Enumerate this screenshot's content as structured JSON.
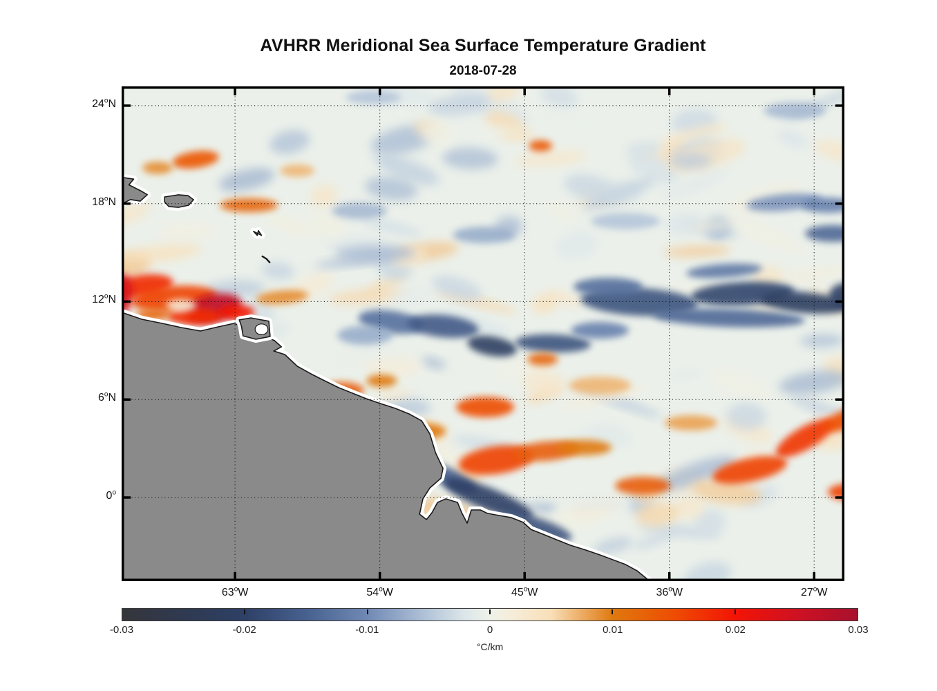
{
  "figure": {
    "title": "AVHRR Meridional Sea Surface Temperature Gradient",
    "subtitle": "2018-07-28"
  },
  "chart_data": {
    "type": "heatmap",
    "title": "AVHRR Meridional Sea Surface Temperature Gradient",
    "subtitle": "2018-07-28",
    "variable": "meridional sea surface temperature gradient",
    "value_units": "°C/km",
    "axes": {
      "lon_range_degE": [
        -70.05,
        -25.12
      ],
      "lat_range_degN": [
        -5.12,
        25.18
      ],
      "x_ticks": [
        {
          "value": 63,
          "label": "63",
          "unit": "W"
        },
        {
          "value": 54,
          "label": "54",
          "unit": "W"
        },
        {
          "value": 45,
          "label": "45",
          "unit": "W"
        },
        {
          "value": 36,
          "label": "36",
          "unit": "W"
        },
        {
          "value": 27,
          "label": "27",
          "unit": "W"
        }
      ],
      "y_ticks": [
        {
          "value": 24,
          "label": "24",
          "unit": "N"
        },
        {
          "value": 18,
          "label": "18",
          "unit": "N"
        },
        {
          "value": 12,
          "label": "12",
          "unit": "N"
        },
        {
          "value": 6,
          "label": "6",
          "unit": "N"
        },
        {
          "value": 0,
          "label": "0",
          "unit": ""
        }
      ],
      "grid": "dotted"
    },
    "colorbar": {
      "min": -0.03,
      "max": 0.03,
      "tick_values": [
        -0.03,
        -0.02,
        -0.01,
        0,
        0.01,
        0.02,
        0.03
      ],
      "tick_labels": [
        "-0.03",
        "-0.02",
        "-0.01",
        "0",
        "0.01",
        "0.02",
        "0.03"
      ],
      "unit_label": "°C/km",
      "stops": [
        [
          -0.03,
          "#35363b"
        ],
        [
          -0.025,
          "#2f3950"
        ],
        [
          -0.02,
          "#2e4066"
        ],
        [
          -0.015,
          "#47618f"
        ],
        [
          -0.01,
          "#7089b4"
        ],
        [
          -0.005,
          "#b5c6da"
        ],
        [
          -0.002,
          "#dde7ea"
        ],
        [
          0.0,
          "#eef2e9"
        ],
        [
          0.002,
          "#f6ecd8"
        ],
        [
          0.005,
          "#f8dfb8"
        ],
        [
          0.01,
          "#e0790f"
        ],
        [
          0.015,
          "#ee4d02"
        ],
        [
          0.02,
          "#f31405"
        ],
        [
          0.025,
          "#cf1122"
        ],
        [
          0.03,
          "#a8112e"
        ]
      ]
    },
    "ocean_base_color": "#ebf0ea",
    "land_color": "#8a8a8a",
    "coast_halo_color": "#ffffff",
    "land_outline_color": "#1a1a1a",
    "land_polygons": {
      "south_america": [
        [
          -71.5,
          11.4
        ],
        [
          -70.05,
          11.34
        ],
        [
          -68.8,
          10.92
        ],
        [
          -67.5,
          10.66
        ],
        [
          -66.35,
          10.41
        ],
        [
          -65.15,
          10.2
        ],
        [
          -64.07,
          10.45
        ],
        [
          -63.09,
          10.66
        ],
        [
          -62.14,
          10.41
        ],
        [
          -61.15,
          10.45
        ],
        [
          -61.24,
          9.9
        ],
        [
          -60.55,
          9.61
        ],
        [
          -60.12,
          9.23
        ],
        [
          -60.59,
          8.97
        ],
        [
          -59.91,
          8.76
        ],
        [
          -59.13,
          8.04
        ],
        [
          -58.27,
          7.57
        ],
        [
          -57.42,
          7.15
        ],
        [
          -56.56,
          6.73
        ],
        [
          -55.7,
          6.39
        ],
        [
          -54.84,
          6.05
        ],
        [
          -53.98,
          5.76
        ],
        [
          -53.03,
          5.46
        ],
        [
          -52.18,
          5.12
        ],
        [
          -51.4,
          4.7
        ],
        [
          -50.89,
          3.89
        ],
        [
          -50.54,
          2.75
        ],
        [
          -50.07,
          1.78
        ],
        [
          -50.2,
          1.18
        ],
        [
          -50.89,
          0.59
        ],
        [
          -51.32,
          -0.08
        ],
        [
          -51.53,
          -1.02
        ],
        [
          -51.1,
          -1.35
        ],
        [
          -50.76,
          -0.93
        ],
        [
          -50.41,
          -0.3
        ],
        [
          -49.9,
          -0.08
        ],
        [
          -49.17,
          -0.3
        ],
        [
          -48.91,
          -0.93
        ],
        [
          -48.57,
          -1.57
        ],
        [
          -48.31,
          -0.76
        ],
        [
          -47.75,
          -0.76
        ],
        [
          -47.32,
          -0.97
        ],
        [
          -46.59,
          -1.1
        ],
        [
          -45.82,
          -1.23
        ],
        [
          -45.09,
          -1.52
        ],
        [
          -44.61,
          -1.95
        ],
        [
          -43.88,
          -2.24
        ],
        [
          -43.02,
          -2.58
        ],
        [
          -42.16,
          -2.92
        ],
        [
          -41.18,
          -3.22
        ],
        [
          -40.32,
          -3.51
        ],
        [
          -38.73,
          -4.1
        ],
        [
          -38.0,
          -4.49
        ],
        [
          -37.22,
          -5.12
        ],
        [
          -36.8,
          -6.5
        ],
        [
          -71.5,
          -6.5
        ]
      ],
      "trinidad": [
        [
          -62.74,
          10.88
        ],
        [
          -62.0,
          11.0
        ],
        [
          -60.9,
          10.8
        ],
        [
          -60.82,
          9.86
        ],
        [
          -61.7,
          9.69
        ],
        [
          -62.5,
          9.9
        ],
        [
          -62.6,
          10.5
        ]
      ],
      "hispaniola_east": [
        [
          -71.3,
          19.8
        ],
        [
          -69.3,
          19.5
        ],
        [
          -69.6,
          19.15
        ],
        [
          -68.8,
          18.75
        ],
        [
          -68.45,
          18.55
        ],
        [
          -68.9,
          18.15
        ],
        [
          -69.5,
          18.25
        ],
        [
          -70.0,
          18.0
        ],
        [
          -71.3,
          17.9
        ]
      ],
      "puerto_rico": [
        [
          -67.38,
          18.41
        ],
        [
          -66.52,
          18.54
        ],
        [
          -65.92,
          18.49
        ],
        [
          -65.58,
          18.24
        ],
        [
          -65.88,
          17.9
        ],
        [
          -66.52,
          17.77
        ],
        [
          -67.12,
          17.82
        ],
        [
          -67.38,
          18.11
        ]
      ],
      "islet_bowtie": [
        [
          -61.85,
          16.3
        ],
        [
          -61.62,
          16.05
        ],
        [
          -61.55,
          16.35
        ],
        [
          -61.35,
          16.05
        ]
      ]
    },
    "islet_dash_line": [
      [
        -61.3,
        14.77
      ],
      [
        -61.05,
        14.62
      ],
      [
        -60.85,
        14.4
      ]
    ],
    "trinidad_notch": {
      "lon": -61.35,
      "lat": 10.3,
      "rx": 0.4,
      "ry": 0.33
    },
    "features": [
      {
        "lon": -68.76,
        "lat": 12.95,
        "rx": 1.93,
        "ry": 0.68,
        "rot": -8,
        "value": 0.018
      },
      {
        "lon": -69.96,
        "lat": 12.48,
        "rx": 0.6,
        "ry": 1.18,
        "rot": 0,
        "value": 0.024
      },
      {
        "lon": -66.78,
        "lat": 12.19,
        "rx": 2.66,
        "ry": 0.76,
        "rot": -5,
        "value": 0.016
      },
      {
        "lon": -64.37,
        "lat": 11.6,
        "rx": 1.8,
        "ry": 0.85,
        "rot": -12,
        "value": 0.027
      },
      {
        "lon": -65.49,
        "lat": 11.09,
        "rx": 1.72,
        "ry": 0.51,
        "rot": 0,
        "value": 0.018
      },
      {
        "lon": -62.91,
        "lat": 11.34,
        "rx": 1.12,
        "ry": 0.47,
        "rot": 0,
        "value": 0.02
      },
      {
        "lon": -66.35,
        "lat": 11.76,
        "rx": 0.95,
        "ry": 0.38,
        "rot": 0,
        "value": 0.002
      },
      {
        "lon": -60.07,
        "lat": 12.27,
        "rx": 1.63,
        "ry": 0.42,
        "rot": -5,
        "value": 0.009
      },
      {
        "lon": -68.07,
        "lat": 11.21,
        "rx": 1.07,
        "ry": 0.34,
        "rot": 0,
        "value": 0.012
      },
      {
        "lon": -65.45,
        "lat": 20.69,
        "rx": 1.46,
        "ry": 0.51,
        "rot": -8,
        "value": 0.014
      },
      {
        "lon": -67.81,
        "lat": 20.19,
        "rx": 0.95,
        "ry": 0.38,
        "rot": 0,
        "value": 0.009
      },
      {
        "lon": -62.14,
        "lat": 17.9,
        "rx": 1.8,
        "ry": 0.42,
        "rot": 0,
        "value": 0.012
      },
      {
        "lon": -44.01,
        "lat": 21.54,
        "rx": 0.73,
        "ry": 0.34,
        "rot": 0,
        "value": 0.014
      },
      {
        "lon": -59.13,
        "lat": 20.02,
        "rx": 1.07,
        "ry": 0.38,
        "rot": 0,
        "value": 0.007
      },
      {
        "lon": -53.29,
        "lat": 10.75,
        "rx": 2.06,
        "ry": 0.68,
        "rot": 8,
        "value": -0.013
      },
      {
        "lon": -50.07,
        "lat": 10.49,
        "rx": 2.23,
        "ry": 0.68,
        "rot": 6,
        "value": -0.016
      },
      {
        "lon": -47.02,
        "lat": 9.27,
        "rx": 1.55,
        "ry": 0.59,
        "rot": 10,
        "value": -0.021
      },
      {
        "lon": -43.24,
        "lat": 9.44,
        "rx": 2.36,
        "ry": 0.55,
        "rot": 2,
        "value": -0.017
      },
      {
        "lon": -40.32,
        "lat": 10.24,
        "rx": 1.8,
        "ry": 0.51,
        "rot": 0,
        "value": -0.011
      },
      {
        "lon": -54.92,
        "lat": 9.94,
        "rx": 1.72,
        "ry": 0.59,
        "rot": 0,
        "value": -0.007
      },
      {
        "lon": -37.87,
        "lat": 11.98,
        "rx": 3.65,
        "ry": 0.85,
        "rot": 3,
        "value": -0.017
      },
      {
        "lon": -31.43,
        "lat": 12.48,
        "rx": 3.22,
        "ry": 0.72,
        "rot": -3,
        "value": -0.019
      },
      {
        "lon": -27.56,
        "lat": 11.93,
        "rx": 2.79,
        "ry": 0.63,
        "rot": 5,
        "value": -0.021
      },
      {
        "lon": -32.29,
        "lat": 11.0,
        "rx": 4.72,
        "ry": 0.55,
        "rot": 2,
        "value": -0.014
      },
      {
        "lon": -32.59,
        "lat": 13.88,
        "rx": 2.36,
        "ry": 0.42,
        "rot": -4,
        "value": -0.012
      },
      {
        "lon": -25.12,
        "lat": 12.36,
        "rx": 0.95,
        "ry": 0.76,
        "rot": 0,
        "value": -0.02
      },
      {
        "lon": -39.8,
        "lat": 12.91,
        "rx": 2.15,
        "ry": 0.55,
        "rot": 0,
        "value": -0.013
      },
      {
        "lon": -28.85,
        "lat": 18.07,
        "rx": 2.36,
        "ry": 0.51,
        "rot": -5,
        "value": -0.009
      },
      {
        "lon": -26.15,
        "lat": 17.9,
        "rx": 1.63,
        "ry": 0.47,
        "rot": 0,
        "value": -0.011
      },
      {
        "lon": -25.85,
        "lat": 16.17,
        "rx": 1.72,
        "ry": 0.51,
        "rot": 0,
        "value": -0.014
      },
      {
        "lon": -47.53,
        "lat": 16.08,
        "rx": 1.93,
        "ry": 0.51,
        "rot": 0,
        "value": -0.007
      },
      {
        "lon": -49.6,
        "lat": 1.18,
        "rx": 1.8,
        "ry": 0.55,
        "rot": 28,
        "value": -0.015
      },
      {
        "lon": -47.28,
        "lat": -0.08,
        "rx": 3.01,
        "ry": 0.68,
        "rot": 22,
        "value": -0.02
      },
      {
        "lon": -44.31,
        "lat": -1.78,
        "rx": 2.36,
        "ry": 0.55,
        "rot": 18,
        "value": -0.017
      },
      {
        "lon": -56.35,
        "lat": 6.56,
        "rx": 1.37,
        "ry": 0.51,
        "rot": 0,
        "value": 0.013
      },
      {
        "lon": -53.89,
        "lat": 7.15,
        "rx": 0.95,
        "ry": 0.38,
        "rot": 0,
        "value": 0.01
      },
      {
        "lon": -51.4,
        "lat": 4.06,
        "rx": 1.5,
        "ry": 0.51,
        "rot": 0,
        "value": 0.01
      },
      {
        "lon": -47.45,
        "lat": 5.54,
        "rx": 1.8,
        "ry": 0.63,
        "rot": 0,
        "value": 0.015
      },
      {
        "lon": -46.76,
        "lat": 2.29,
        "rx": 2.36,
        "ry": 0.85,
        "rot": -8,
        "value": 0.016
      },
      {
        "lon": -43.66,
        "lat": 2.84,
        "rx": 2.06,
        "ry": 0.59,
        "rot": -5,
        "value": 0.013
      },
      {
        "lon": -41.31,
        "lat": 3.05,
        "rx": 1.72,
        "ry": 0.47,
        "rot": 0,
        "value": 0.01
      },
      {
        "lon": -37.66,
        "lat": 0.72,
        "rx": 1.72,
        "ry": 0.55,
        "rot": 0,
        "value": 0.013
      },
      {
        "lon": -31.0,
        "lat": 1.69,
        "rx": 2.36,
        "ry": 0.72,
        "rot": -12,
        "value": 0.016
      },
      {
        "lon": -27.56,
        "lat": 3.64,
        "rx": 2.06,
        "ry": 0.68,
        "rot": -30,
        "value": 0.017
      },
      {
        "lon": -24.99,
        "lat": 4.78,
        "rx": 1.5,
        "ry": 0.59,
        "rot": -20,
        "value": 0.015
      },
      {
        "lon": -24.86,
        "lat": 0.34,
        "rx": 1.29,
        "ry": 0.51,
        "rot": 0,
        "value": 0.016
      },
      {
        "lon": -34.65,
        "lat": 4.57,
        "rx": 1.63,
        "ry": 0.47,
        "rot": 0,
        "value": 0.008
      },
      {
        "lon": -43.88,
        "lat": 8.46,
        "rx": 0.95,
        "ry": 0.38,
        "rot": 0,
        "value": 0.012
      },
      {
        "lon": -40.32,
        "lat": 6.86,
        "rx": 1.93,
        "ry": 0.55,
        "rot": 0,
        "value": 0.007
      },
      {
        "lon": -55.26,
        "lat": 17.56,
        "rx": 1.72,
        "ry": 0.51,
        "rot": 0,
        "value": -0.006
      },
      {
        "lon": -38.73,
        "lat": 16.93,
        "rx": 2.15,
        "ry": 0.51,
        "rot": 0,
        "value": -0.005
      },
      {
        "lon": -28.2,
        "lat": 23.7,
        "rx": 1.93,
        "ry": 0.51,
        "rot": 0,
        "value": -0.006
      },
      {
        "lon": -54.4,
        "lat": 24.5,
        "rx": 1.72,
        "ry": 0.42,
        "rot": 0,
        "value": -0.005
      }
    ]
  }
}
